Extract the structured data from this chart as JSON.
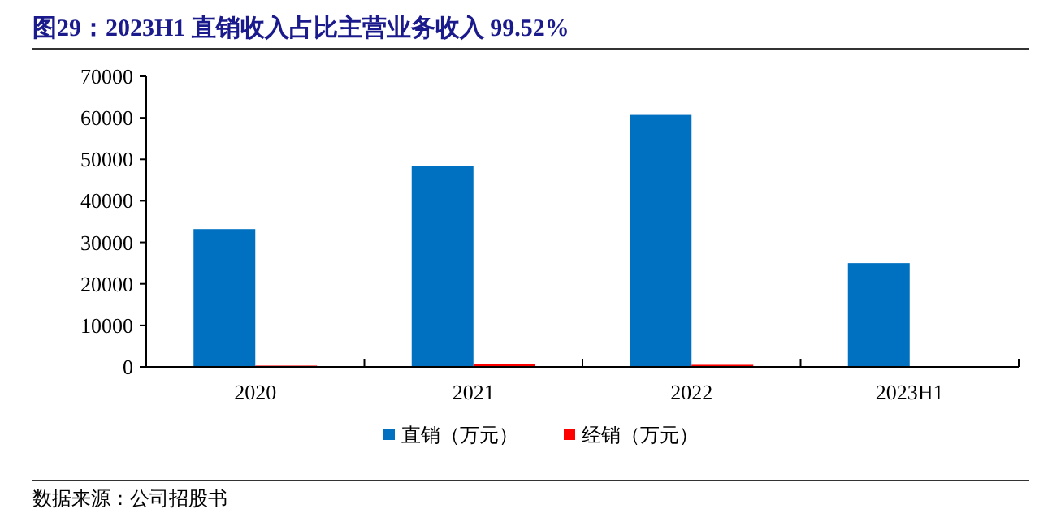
{
  "chart_data": {
    "type": "bar",
    "title": "图29：2023H1 直销收入占比主营业务收入 99.52%",
    "categories": [
      "2020",
      "2021",
      "2022",
      "2023H1"
    ],
    "series": [
      {
        "name": "直销（万元）",
        "color": "#0070c0",
        "values": [
          33200,
          48400,
          60700,
          25000
        ]
      },
      {
        "name": "经销（万元）",
        "color": "#ff0000",
        "values": [
          300,
          600,
          500,
          100
        ]
      }
    ],
    "ylim": [
      0,
      70000
    ],
    "yticks": [
      0,
      10000,
      20000,
      30000,
      40000,
      50000,
      60000,
      70000
    ],
    "grid": false,
    "legend": "bottom",
    "annotations": [
      "数据来源：公司招股书"
    ]
  }
}
